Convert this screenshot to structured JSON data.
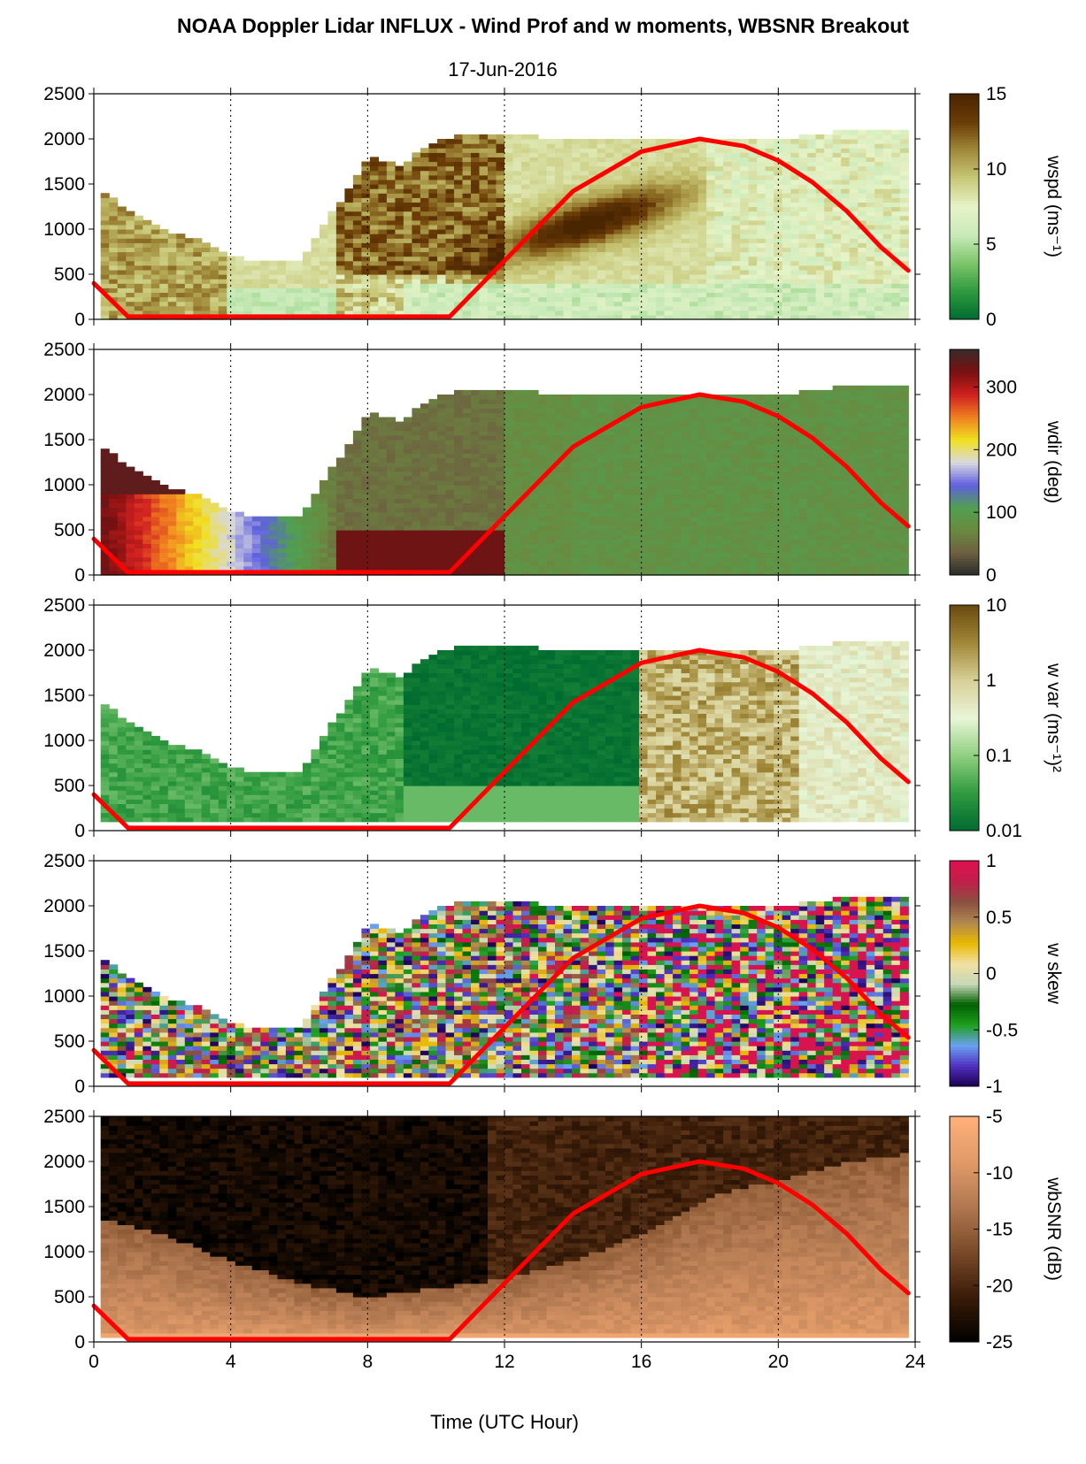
{
  "figure": {
    "title": "NOAA Doppler Lidar INFLUX - Wind Prof and w moments, WBSNR Breakout",
    "subtitle": "17-Jun-2016",
    "xlabel": "Time (UTC Hour)"
  },
  "colors": {
    "sun_curve": "#ff0000",
    "wspd_cmap": [
      "#006b30",
      "#2f9a3e",
      "#7cc56a",
      "#c8eab8",
      "#e6f3c8",
      "#c8c878",
      "#a08a3a",
      "#6b3c06",
      "#4a2502"
    ],
    "wdir_cmap": [
      "#2a2a2a",
      "#6e6040",
      "#6a8a40",
      "#50a050",
      "#6060e0",
      "#d8d8e0",
      "#f0e020",
      "#f08020",
      "#d02020",
      "#7a1010",
      "#3a2a2a"
    ],
    "wvar_cmap": [
      "#006b30",
      "#2f9a3e",
      "#8fcf80",
      "#e8f5d8",
      "#d8d098",
      "#a08838",
      "#6b4a10"
    ],
    "wskew_cmap": [
      "#1a0050",
      "#5030c0",
      "#6aa0f0",
      "#20a020",
      "#006000",
      "#c8d8b8",
      "#f0e0a0",
      "#e8b800",
      "#b08850",
      "#8a5040",
      "#c0204a",
      "#e01050"
    ],
    "wbsnr_cmap": [
      "#000000",
      "#3a1c08",
      "#7a4a28",
      "#b07850",
      "#e09a68",
      "#ffb07a"
    ]
  },
  "chart_data": [
    {
      "type": "heatmap",
      "variable": "wspd",
      "ylabel": "wspd (ms⁻¹)",
      "xlim": [
        0,
        24
      ],
      "ylim": [
        0,
        2500
      ],
      "xticks": [
        0,
        4,
        8,
        12,
        16,
        20,
        24
      ],
      "yticks": [
        0,
        500,
        1000,
        1500,
        2000,
        2500
      ],
      "clim": [
        0,
        15
      ],
      "cticks": [
        "0",
        "5",
        "10",
        "15"
      ],
      "vertical_grid": [
        4,
        8,
        12,
        16,
        20
      ],
      "sun_curve": {
        "x": [
          0,
          1,
          10.4,
          12,
          14,
          16,
          17.7,
          19,
          20,
          21,
          22,
          23,
          23.8
        ],
        "y": [
          400,
          30,
          30,
          650,
          1420,
          1860,
          2000,
          1920,
          1760,
          1520,
          1200,
          800,
          540
        ]
      }
    },
    {
      "type": "heatmap",
      "variable": "wdir",
      "ylabel": "wdir (deg)",
      "xlim": [
        0,
        24
      ],
      "ylim": [
        0,
        2500
      ],
      "xticks": [
        0,
        4,
        8,
        12,
        16,
        20,
        24
      ],
      "yticks": [
        0,
        500,
        1000,
        1500,
        2000,
        2500
      ],
      "clim": [
        0,
        360
      ],
      "cticks": [
        "0",
        "100",
        "200",
        "300"
      ],
      "vertical_grid": [
        4,
        8,
        12,
        16,
        20
      ],
      "sun_curve": {
        "x": [
          0,
          1,
          10.4,
          12,
          14,
          16,
          17.7,
          19,
          20,
          21,
          22,
          23,
          23.8
        ],
        "y": [
          400,
          30,
          30,
          650,
          1420,
          1860,
          2000,
          1920,
          1760,
          1520,
          1200,
          800,
          540
        ]
      }
    },
    {
      "type": "heatmap",
      "variable": "w var",
      "ylabel": "w var (ms⁻¹)²",
      "xlim": [
        0,
        24
      ],
      "ylim": [
        0,
        2500
      ],
      "xticks": [
        0,
        4,
        8,
        12,
        16,
        20,
        24
      ],
      "yticks": [
        0,
        500,
        1000,
        1500,
        2000,
        2500
      ],
      "clim": [
        0.01,
        10
      ],
      "clog": true,
      "cticks": [
        "0.01",
        "0.1",
        "1",
        "10"
      ],
      "vertical_grid": [
        4,
        8,
        12,
        16,
        20
      ],
      "sun_curve": {
        "x": [
          0,
          1,
          10.4,
          12,
          14,
          16,
          17.7,
          19,
          20,
          21,
          22,
          23,
          23.8
        ],
        "y": [
          400,
          30,
          30,
          650,
          1420,
          1860,
          2000,
          1920,
          1760,
          1520,
          1200,
          800,
          540
        ]
      }
    },
    {
      "type": "heatmap",
      "variable": "w skew",
      "ylabel": "w skew",
      "xlim": [
        0,
        24
      ],
      "ylim": [
        0,
        2500
      ],
      "xticks": [
        0,
        4,
        8,
        12,
        16,
        20,
        24
      ],
      "yticks": [
        0,
        500,
        1000,
        1500,
        2000,
        2500
      ],
      "clim": [
        -1,
        1
      ],
      "cticks": [
        "-1",
        "-0.5",
        "0",
        "0.5",
        "1"
      ],
      "vertical_grid": [
        4,
        8,
        12,
        16,
        20
      ],
      "sun_curve": {
        "x": [
          0,
          1,
          10.4,
          12,
          14,
          16,
          17.7,
          19,
          20,
          21,
          22,
          23,
          23.8
        ],
        "y": [
          400,
          30,
          30,
          650,
          1420,
          1860,
          2000,
          1920,
          1760,
          1520,
          1200,
          800,
          540
        ]
      }
    },
    {
      "type": "heatmap",
      "variable": "wbSNR",
      "ylabel": "wbSNR (dB)",
      "xlim": [
        0,
        24
      ],
      "ylim": [
        0,
        2500
      ],
      "xticks": [
        0,
        4,
        8,
        12,
        16,
        20,
        24
      ],
      "yticks": [
        0,
        500,
        1000,
        1500,
        2000,
        2500
      ],
      "clim": [
        -25,
        -5
      ],
      "cticks": [
        "-25",
        "-20",
        "-15",
        "-10",
        "-5"
      ],
      "vertical_grid": [
        4,
        8,
        12,
        16,
        20
      ],
      "sun_curve": {
        "x": [
          0,
          1,
          10.4,
          12,
          14,
          16,
          17.7,
          19,
          20,
          21,
          22,
          23,
          23.8
        ],
        "y": [
          400,
          30,
          30,
          650,
          1420,
          1860,
          2000,
          1920,
          1760,
          1520,
          1200,
          800,
          540
        ]
      }
    }
  ]
}
